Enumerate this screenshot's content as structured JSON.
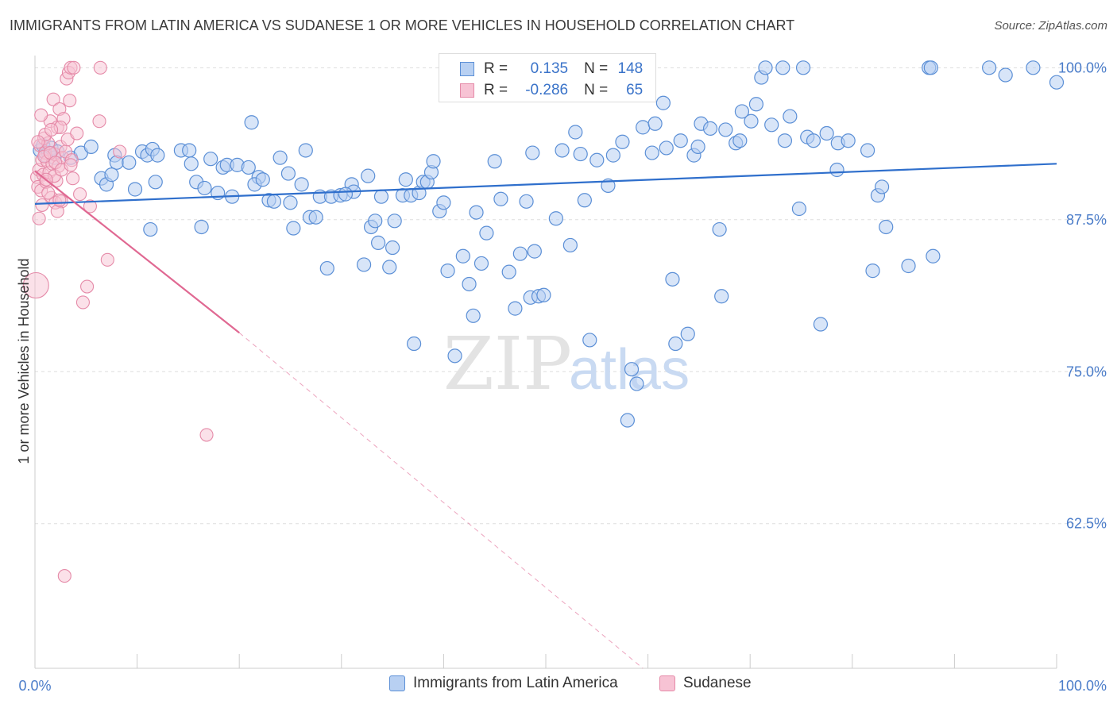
{
  "title": "IMMIGRANTS FROM LATIN AMERICA VS SUDANESE 1 OR MORE VEHICLES IN HOUSEHOLD CORRELATION CHART",
  "source": "Source: ZipAtlas.com",
  "watermark": {
    "zip": "ZIP",
    "atlas": "atlas"
  },
  "colors": {
    "blue": "#5b8fd6",
    "blue_fill": "#b8d0f2",
    "blue_line": "#2f6fcc",
    "pink": "#e58aa8",
    "pink_fill": "#f7c3d4",
    "pink_line": "#e06892",
    "axis_text": "#4a7cc9",
    "grid": "#dddddd"
  },
  "stats_legend": {
    "rows": [
      {
        "r_label": "R =",
        "r_value": "0.135",
        "n_label": "N =",
        "n_value": "148"
      },
      {
        "r_label": "R =",
        "r_value": "-0.286",
        "n_label": "N =",
        "n_value": "65"
      }
    ]
  },
  "chart_data": {
    "type": "scatter",
    "title": "IMMIGRANTS FROM LATIN AMERICA VS SUDANESE 1 OR MORE VEHICLES IN HOUSEHOLD CORRELATION CHART",
    "xlabel": "",
    "ylabel": "1 or more Vehicles in Household",
    "xlim": [
      0,
      100
    ],
    "ylim": [
      50.6,
      101
    ],
    "x_tick_labels": [
      "0.0%",
      "100.0%"
    ],
    "y_ticks": [
      100,
      87.5,
      75,
      62.5
    ],
    "y_tick_labels": [
      "100.0%",
      "87.5%",
      "75.0%",
      "62.5%"
    ],
    "grid": "horizontal dashed",
    "legend_position": "bottom",
    "series": [
      {
        "name": "Immigrants from Latin America",
        "color": "#5b8fd6",
        "r": 0.135,
        "n": 148,
        "trend": {
          "x": [
            0,
            100
          ],
          "y": [
            88.8,
            92.1
          ]
        },
        "points": [
          [
            0.5,
            93.2
          ],
          [
            0.8,
            93.6
          ],
          [
            1.0,
            92.8
          ],
          [
            1.3,
            93.0
          ],
          [
            1.6,
            93.4
          ],
          [
            1.9,
            92.6
          ],
          [
            2.2,
            93.1
          ],
          [
            3.5,
            92.6
          ],
          [
            4.5,
            93.0
          ],
          [
            5.5,
            93.5
          ],
          [
            6.5,
            90.9
          ],
          [
            7.0,
            90.4
          ],
          [
            7.8,
            92.8
          ],
          [
            8.0,
            92.2
          ],
          [
            7.5,
            91.2
          ],
          [
            9.2,
            92.2
          ],
          [
            9.8,
            90.0
          ],
          [
            10.5,
            93.1
          ],
          [
            11.0,
            92.8
          ],
          [
            11.3,
            86.7
          ],
          [
            11.5,
            93.3
          ],
          [
            12.0,
            92.8
          ],
          [
            11.8,
            90.6
          ],
          [
            14.3,
            93.2
          ],
          [
            15.1,
            93.2
          ],
          [
            15.3,
            92.1
          ],
          [
            15.8,
            90.6
          ],
          [
            16.6,
            90.1
          ],
          [
            17.2,
            92.5
          ],
          [
            16.3,
            86.9
          ],
          [
            17.9,
            89.7
          ],
          [
            18.4,
            91.8
          ],
          [
            18.8,
            92.0
          ],
          [
            19.3,
            89.4
          ],
          [
            19.8,
            92.0
          ],
          [
            20.9,
            91.8
          ],
          [
            21.9,
            91.0
          ],
          [
            21.5,
            90.4
          ],
          [
            22.3,
            90.8
          ],
          [
            22.9,
            89.1
          ],
          [
            23.4,
            89.0
          ],
          [
            24.0,
            92.6
          ],
          [
            24.8,
            91.3
          ],
          [
            25.0,
            88.9
          ],
          [
            25.3,
            86.8
          ],
          [
            26.1,
            90.4
          ],
          [
            26.5,
            93.2
          ],
          [
            26.9,
            87.7
          ],
          [
            27.5,
            87.7
          ],
          [
            27.9,
            89.4
          ],
          [
            28.6,
            83.5
          ],
          [
            29.0,
            89.4
          ],
          [
            29.9,
            89.5
          ],
          [
            31.0,
            90.4
          ],
          [
            31.2,
            89.8
          ],
          [
            32.2,
            83.8
          ],
          [
            32.6,
            91.1
          ],
          [
            32.9,
            86.9
          ],
          [
            33.3,
            87.4
          ],
          [
            33.6,
            85.6
          ],
          [
            33.9,
            89.4
          ],
          [
            34.7,
            83.6
          ],
          [
            35.0,
            85.2
          ],
          [
            35.2,
            87.4
          ],
          [
            36.0,
            89.5
          ],
          [
            36.3,
            90.8
          ],
          [
            36.8,
            89.5
          ],
          [
            37.1,
            77.3
          ],
          [
            37.6,
            89.7
          ],
          [
            38.0,
            90.6
          ],
          [
            38.4,
            90.6
          ],
          [
            38.8,
            91.4
          ],
          [
            39.6,
            88.2
          ],
          [
            40.0,
            88.9
          ],
          [
            40.4,
            83.3
          ],
          [
            41.1,
            76.3
          ],
          [
            41.9,
            84.5
          ],
          [
            42.5,
            82.2
          ],
          [
            42.9,
            79.6
          ],
          [
            43.2,
            88.1
          ],
          [
            43.7,
            83.9
          ],
          [
            44.2,
            86.4
          ],
          [
            45.0,
            92.3
          ],
          [
            45.6,
            89.2
          ],
          [
            46.4,
            83.2
          ],
          [
            47.0,
            80.2
          ],
          [
            47.5,
            84.7
          ],
          [
            48.1,
            89.0
          ],
          [
            48.5,
            81.1
          ],
          [
            48.9,
            84.9
          ],
          [
            49.3,
            81.2
          ],
          [
            49.8,
            81.3
          ],
          [
            51.0,
            87.6
          ],
          [
            51.6,
            93.2
          ],
          [
            52.4,
            85.4
          ],
          [
            52.9,
            94.7
          ],
          [
            53.4,
            92.9
          ],
          [
            53.8,
            89.1
          ],
          [
            54.3,
            77.6
          ],
          [
            55.0,
            92.4
          ],
          [
            56.1,
            90.3
          ],
          [
            56.6,
            92.8
          ],
          [
            57.5,
            93.9
          ],
          [
            58.0,
            71.0
          ],
          [
            58.4,
            75.2
          ],
          [
            58.9,
            74.0
          ],
          [
            59.5,
            95.1
          ],
          [
            60.4,
            93.0
          ],
          [
            60.7,
            95.4
          ],
          [
            61.5,
            97.1
          ],
          [
            61.8,
            93.4
          ],
          [
            62.4,
            82.6
          ],
          [
            62.7,
            77.3
          ],
          [
            63.2,
            94.0
          ],
          [
            63.9,
            78.1
          ],
          [
            64.5,
            92.8
          ],
          [
            64.9,
            93.5
          ],
          [
            65.2,
            95.4
          ],
          [
            66.1,
            95.0
          ],
          [
            67.0,
            86.7
          ],
          [
            67.2,
            81.2
          ],
          [
            67.6,
            94.9
          ],
          [
            68.6,
            93.8
          ],
          [
            69.0,
            94.0
          ],
          [
            69.2,
            96.4
          ],
          [
            70.1,
            95.6
          ],
          [
            70.6,
            97.0
          ],
          [
            71.1,
            99.2
          ],
          [
            71.5,
            100.0
          ],
          [
            72.1,
            95.3
          ],
          [
            73.2,
            100.0
          ],
          [
            73.4,
            94.0
          ],
          [
            73.9,
            96.0
          ],
          [
            74.8,
            88.4
          ],
          [
            75.2,
            100.0
          ],
          [
            75.6,
            94.3
          ],
          [
            76.2,
            94.0
          ],
          [
            76.9,
            78.9
          ],
          [
            77.5,
            94.6
          ],
          [
            78.5,
            91.6
          ],
          [
            78.6,
            93.8
          ],
          [
            79.6,
            94.0
          ],
          [
            81.5,
            93.2
          ],
          [
            82.0,
            83.3
          ],
          [
            82.5,
            89.5
          ],
          [
            82.9,
            90.2
          ],
          [
            83.3,
            86.9
          ],
          [
            85.5,
            83.7
          ],
          [
            87.5,
            100.0
          ],
          [
            87.7,
            100.0
          ],
          [
            87.9,
            84.5
          ],
          [
            93.4,
            100.0
          ],
          [
            97.7,
            100.0
          ],
          [
            100.0,
            98.8
          ],
          [
            95.0,
            99.4
          ],
          [
            48.7,
            93.0
          ],
          [
            39.0,
            92.3
          ],
          [
            30.4,
            89.6
          ],
          [
            21.2,
            95.5
          ]
        ]
      },
      {
        "name": "Sudanese",
        "color": "#e58aa8",
        "r": -0.286,
        "n": 65,
        "trend": {
          "x": [
            0,
            20
          ],
          "y": [
            91.5,
            78.2
          ]
        },
        "trend_extension": {
          "x": [
            20,
            59.5
          ],
          "y": [
            78.2,
            50.6
          ]
        },
        "points": [
          [
            0.1,
            82.1
          ],
          [
            0.2,
            91.0
          ],
          [
            0.3,
            90.2
          ],
          [
            0.4,
            91.6
          ],
          [
            0.5,
            93.6
          ],
          [
            0.6,
            89.9
          ],
          [
            0.7,
            92.4
          ],
          [
            0.8,
            91.2
          ],
          [
            0.9,
            94.2
          ],
          [
            1.0,
            93.0
          ],
          [
            1.1,
            90.6
          ],
          [
            1.2,
            92.3
          ],
          [
            1.3,
            93.8
          ],
          [
            1.4,
            91.4
          ],
          [
            1.5,
            95.6
          ],
          [
            1.6,
            89.3
          ],
          [
            1.7,
            92.1
          ],
          [
            1.8,
            97.4
          ],
          [
            1.9,
            92.9
          ],
          [
            2.0,
            88.9
          ],
          [
            2.1,
            90.7
          ],
          [
            2.2,
            95.1
          ],
          [
            2.3,
            91.9
          ],
          [
            2.4,
            96.6
          ],
          [
            2.5,
            93.5
          ],
          [
            2.6,
            89.0
          ],
          [
            2.7,
            92.6
          ],
          [
            2.8,
            95.8
          ],
          [
            2.9,
            58.2
          ],
          [
            3.0,
            93.1
          ],
          [
            3.1,
            99.1
          ],
          [
            3.2,
            94.1
          ],
          [
            3.3,
            99.6
          ],
          [
            3.4,
            97.3
          ],
          [
            3.5,
            100.0
          ],
          [
            3.6,
            92.4
          ],
          [
            3.7,
            90.9
          ],
          [
            3.8,
            100.0
          ],
          [
            4.1,
            94.6
          ],
          [
            4.4,
            89.6
          ],
          [
            4.7,
            80.7
          ],
          [
            5.1,
            82.0
          ],
          [
            5.4,
            88.6
          ],
          [
            6.3,
            95.6
          ],
          [
            6.4,
            100.0
          ],
          [
            7.1,
            84.2
          ],
          [
            8.3,
            93.1
          ],
          [
            16.8,
            69.8
          ],
          [
            0.4,
            87.6
          ],
          [
            1.0,
            94.5
          ],
          [
            1.3,
            89.7
          ],
          [
            1.9,
            91.1
          ],
          [
            2.2,
            88.2
          ],
          [
            2.5,
            95.1
          ],
          [
            0.6,
            96.1
          ],
          [
            0.9,
            92.7
          ],
          [
            1.5,
            93.0
          ],
          [
            2.0,
            92.2
          ],
          [
            2.4,
            89.1
          ],
          [
            0.3,
            93.9
          ],
          [
            0.7,
            88.7
          ],
          [
            1.1,
            90.8
          ],
          [
            1.6,
            94.9
          ],
          [
            2.6,
            91.6
          ],
          [
            3.5,
            92.0
          ]
        ]
      }
    ]
  },
  "bottom_legend": [
    {
      "label": "Immigrants from Latin America"
    },
    {
      "label": "Sudanese"
    }
  ]
}
